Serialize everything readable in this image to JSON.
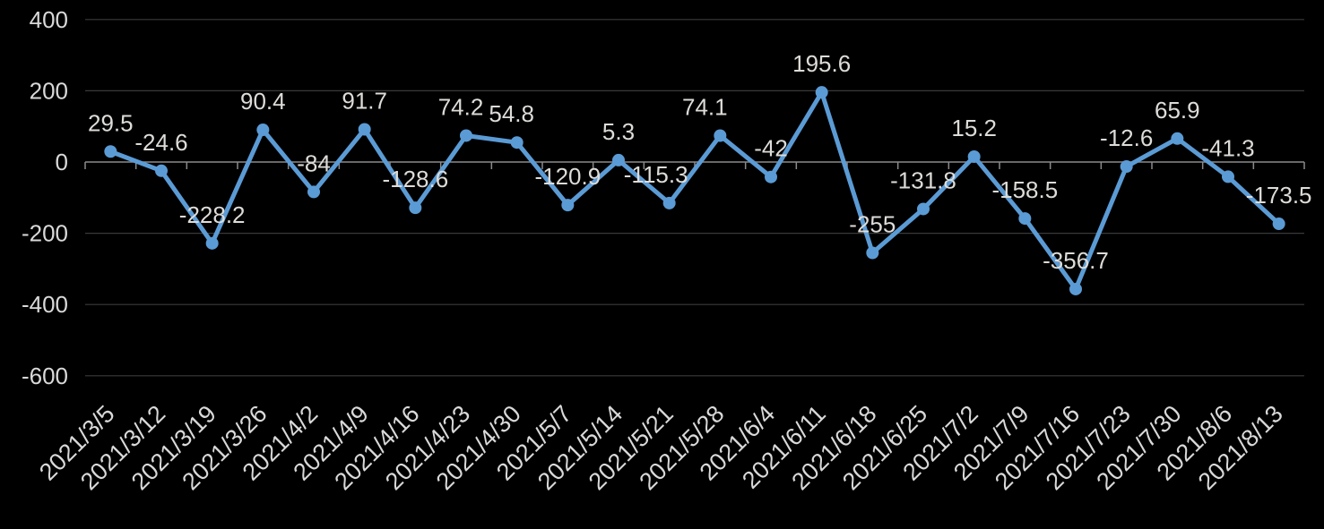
{
  "chart_data": {
    "type": "line",
    "title": "",
    "xlabel": "",
    "ylabel": "",
    "categories": [
      "2021/3/5",
      "2021/3/12",
      "2021/3/19",
      "2021/3/26",
      "2021/4/2",
      "2021/4/9",
      "2021/4/16",
      "2021/4/23",
      "2021/4/30",
      "2021/5/7",
      "2021/5/14",
      "2021/5/21",
      "2021/5/28",
      "2021/6/4",
      "2021/6/11",
      "2021/6/18",
      "2021/6/25",
      "2021/7/2",
      "2021/7/9",
      "2021/7/16",
      "2021/7/23",
      "2021/7/30",
      "2021/8/6",
      "2021/8/13"
    ],
    "series": [
      {
        "name": "",
        "values": [
          29.5,
          -24.6,
          -228.2,
          90.4,
          -84,
          91.7,
          -128.6,
          74.2,
          54.8,
          -120.9,
          5.3,
          -115.3,
          74.1,
          -42,
          195.6,
          -255,
          -131.8,
          15.2,
          -158.5,
          -356.7,
          -12.6,
          65.9,
          -41.3,
          -173.5
        ],
        "point_labels": [
          "29.5",
          "-24.6",
          "-228.2",
          "90.4",
          "-84",
          "91.7",
          "-128.6",
          "74.2",
          "54.8",
          "-120.9",
          "5.3",
          "-115.3",
          "74.1",
          "-42",
          "195.6",
          "-255",
          "-131.8",
          "15.2",
          "-158.5",
          "-356.7",
          "-12.6",
          "65.9",
          "-41.3",
          "-173.5"
        ]
      }
    ],
    "ylim": [
      -600,
      400
    ],
    "yticks": {
      "values": [
        400,
        200,
        0,
        -200,
        -400,
        -600
      ],
      "labels": [
        "400",
        "200",
        "0",
        "-200",
        "-400",
        "-600"
      ]
    },
    "grid": true,
    "legend_position": "none",
    "marker": "circle",
    "colors": {
      "background": "#000000",
      "line": "#5B9BD5",
      "marker": "#5B9BD5",
      "axis_text": "#D9D9D9",
      "data_label_text": "#DEDCD8",
      "gridline": "#3A3A3A",
      "axis_line": "#8A8A8A"
    }
  }
}
